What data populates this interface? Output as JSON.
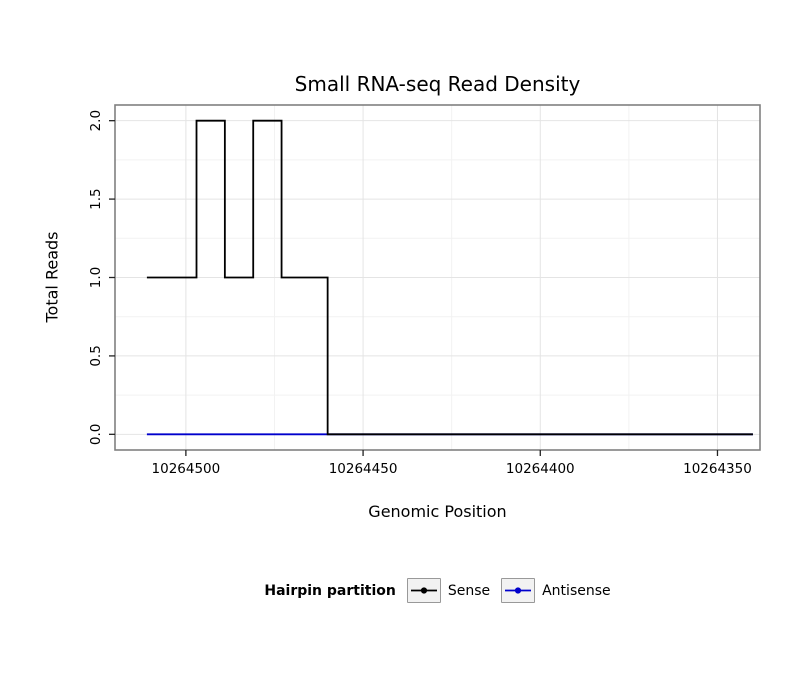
{
  "chart_data": {
    "type": "line",
    "title": "Small RNA-seq Read Density",
    "xlabel": "Genomic Position",
    "ylabel": "Total Reads",
    "x_reversed": true,
    "xlim": [
      10264520,
      10264338
    ],
    "ylim": [
      -0.1,
      2.1
    ],
    "xticks": [
      10264500,
      10264450,
      10264400,
      10264350
    ],
    "xtick_labels": [
      "10264500",
      "10264450",
      "10264400",
      "10264350"
    ],
    "yticks": [
      0,
      0.5,
      1,
      1.5,
      2
    ],
    "ytick_labels": [
      "0.0",
      "0.5",
      "1.0",
      "1.5",
      "2.0"
    ],
    "grid": true,
    "legend_position": "bottom",
    "legend_title": "Hairpin partition",
    "colors": {
      "sense": "#000000",
      "antisense": "#0000CC",
      "grid_major": "#e4e4e4",
      "grid_minor": "#f2f2f2",
      "panel_border": "#808080"
    },
    "series": [
      {
        "name": "Sense",
        "color": "#000000",
        "style": "step",
        "points": [
          [
            10264511,
            1
          ],
          [
            10264497,
            1
          ],
          [
            10264497,
            2
          ],
          [
            10264489,
            2
          ],
          [
            10264489,
            1
          ],
          [
            10264481,
            1
          ],
          [
            10264481,
            2
          ],
          [
            10264473,
            2
          ],
          [
            10264473,
            1
          ],
          [
            10264460,
            1
          ],
          [
            10264460,
            0
          ],
          [
            10264340,
            0
          ]
        ]
      },
      {
        "name": "Antisense",
        "color": "#0000CC",
        "style": "step",
        "points": [
          [
            10264511,
            0
          ],
          [
            10264340,
            0
          ]
        ]
      }
    ]
  }
}
